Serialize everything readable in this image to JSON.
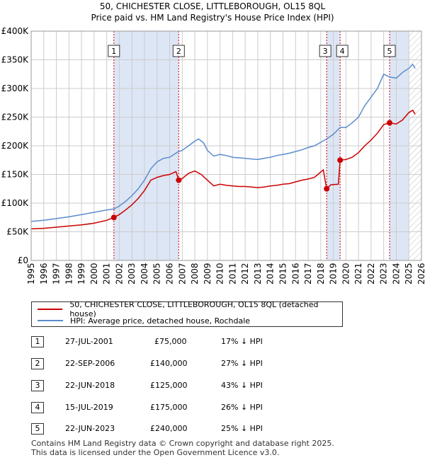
{
  "title_line1": "50, CHICHESTER CLOSE, LITTLEBOROUGH, OL15 8QL",
  "title_line2": "Price paid vs. HM Land Registry's House Price Index (HPI)",
  "colors": {
    "price_paid": "#cc0000",
    "hpi": "#5b8ccc",
    "shade": "#dde6f5",
    "grid": "#cccccc"
  },
  "chart_data": {
    "type": "line",
    "xlim": [
      1995,
      2026
    ],
    "ylim": [
      0,
      400000
    ],
    "y_ticks": [
      {
        "value": 0,
        "label": "£0"
      },
      {
        "value": 50000,
        "label": "£50K"
      },
      {
        "value": 100000,
        "label": "£100K"
      },
      {
        "value": 150000,
        "label": "£150K"
      },
      {
        "value": 200000,
        "label": "£200K"
      },
      {
        "value": 250000,
        "label": "£250K"
      },
      {
        "value": 300000,
        "label": "£300K"
      },
      {
        "value": 350000,
        "label": "£350K"
      },
      {
        "value": 400000,
        "label": "£400K"
      }
    ],
    "x_ticks": [
      "1995",
      "1996",
      "1997",
      "1998",
      "1999",
      "2000",
      "2001",
      "2002",
      "2003",
      "2004",
      "2005",
      "2006",
      "2007",
      "2008",
      "2009",
      "2010",
      "2011",
      "2012",
      "2013",
      "2014",
      "2015",
      "2016",
      "2017",
      "2018",
      "2019",
      "2020",
      "2021",
      "2022",
      "2023",
      "2024",
      "2025",
      "2026"
    ],
    "series": [
      {
        "name": "hpi",
        "points": [
          [
            1995.0,
            68000
          ],
          [
            1996.0,
            70000
          ],
          [
            1997.0,
            73000
          ],
          [
            1998.0,
            76000
          ],
          [
            1999.0,
            80000
          ],
          [
            2000.0,
            84000
          ],
          [
            2001.0,
            88000
          ],
          [
            2001.6,
            90000
          ],
          [
            2002.0,
            95000
          ],
          [
            2002.5,
            103000
          ],
          [
            2003.0,
            113000
          ],
          [
            2003.5,
            125000
          ],
          [
            2004.0,
            140000
          ],
          [
            2004.5,
            160000
          ],
          [
            2005.0,
            172000
          ],
          [
            2005.5,
            178000
          ],
          [
            2006.0,
            180000
          ],
          [
            2006.7,
            190000
          ],
          [
            2007.0,
            192000
          ],
          [
            2007.5,
            200000
          ],
          [
            2008.0,
            208000
          ],
          [
            2008.3,
            212000
          ],
          [
            2008.7,
            205000
          ],
          [
            2009.0,
            192000
          ],
          [
            2009.5,
            182000
          ],
          [
            2010.0,
            185000
          ],
          [
            2010.5,
            183000
          ],
          [
            2011.0,
            180000
          ],
          [
            2011.5,
            179000
          ],
          [
            2012.0,
            178000
          ],
          [
            2012.5,
            177000
          ],
          [
            2013.0,
            176000
          ],
          [
            2013.5,
            178000
          ],
          [
            2014.0,
            180000
          ],
          [
            2014.5,
            183000
          ],
          [
            2015.0,
            185000
          ],
          [
            2015.5,
            187000
          ],
          [
            2016.0,
            190000
          ],
          [
            2016.5,
            193000
          ],
          [
            2017.0,
            197000
          ],
          [
            2017.5,
            200000
          ],
          [
            2018.0,
            206000
          ],
          [
            2018.47,
            212000
          ],
          [
            2019.0,
            220000
          ],
          [
            2019.54,
            232000
          ],
          [
            2020.0,
            232000
          ],
          [
            2020.5,
            240000
          ],
          [
            2021.0,
            250000
          ],
          [
            2021.5,
            270000
          ],
          [
            2022.0,
            285000
          ],
          [
            2022.5,
            300000
          ],
          [
            2023.0,
            325000
          ],
          [
            2023.47,
            320000
          ],
          [
            2024.0,
            318000
          ],
          [
            2024.5,
            328000
          ],
          [
            2025.0,
            335000
          ],
          [
            2025.3,
            342000
          ],
          [
            2025.5,
            335000
          ]
        ]
      },
      {
        "name": "price_paid",
        "points": [
          [
            1995.0,
            55000
          ],
          [
            1996.0,
            56000
          ],
          [
            1997.0,
            58000
          ],
          [
            1998.0,
            60000
          ],
          [
            1999.0,
            62000
          ],
          [
            2000.0,
            65000
          ],
          [
            2001.0,
            70000
          ],
          [
            2001.57,
            75000
          ],
          [
            2002.0,
            80000
          ],
          [
            2002.5,
            88000
          ],
          [
            2003.0,
            97000
          ],
          [
            2003.5,
            108000
          ],
          [
            2004.0,
            122000
          ],
          [
            2004.5,
            140000
          ],
          [
            2005.0,
            145000
          ],
          [
            2005.5,
            148000
          ],
          [
            2006.0,
            150000
          ],
          [
            2006.5,
            155000
          ],
          [
            2006.72,
            140000
          ],
          [
            2007.0,
            143000
          ],
          [
            2007.5,
            152000
          ],
          [
            2008.0,
            156000
          ],
          [
            2008.5,
            150000
          ],
          [
            2009.0,
            140000
          ],
          [
            2009.5,
            130000
          ],
          [
            2010.0,
            133000
          ],
          [
            2010.5,
            131000
          ],
          [
            2011.0,
            130000
          ],
          [
            2011.5,
            129000
          ],
          [
            2012.0,
            129000
          ],
          [
            2012.5,
            128000
          ],
          [
            2013.0,
            127000
          ],
          [
            2013.5,
            128000
          ],
          [
            2014.0,
            130000
          ],
          [
            2014.5,
            131000
          ],
          [
            2015.0,
            133000
          ],
          [
            2015.5,
            134000
          ],
          [
            2016.0,
            137000
          ],
          [
            2016.5,
            140000
          ],
          [
            2017.0,
            142000
          ],
          [
            2017.5,
            145000
          ],
          [
            2018.2,
            158000
          ],
          [
            2018.47,
            125000
          ],
          [
            2018.8,
            132000
          ],
          [
            2019.4,
            133000
          ],
          [
            2019.54,
            175000
          ],
          [
            2020.0,
            176000
          ],
          [
            2020.5,
            180000
          ],
          [
            2021.0,
            188000
          ],
          [
            2021.5,
            200000
          ],
          [
            2022.0,
            210000
          ],
          [
            2022.5,
            222000
          ],
          [
            2023.0,
            237000
          ],
          [
            2023.47,
            240000
          ],
          [
            2024.0,
            238000
          ],
          [
            2024.5,
            245000
          ],
          [
            2025.0,
            258000
          ],
          [
            2025.3,
            262000
          ],
          [
            2025.5,
            255000
          ]
        ]
      }
    ],
    "transactions": [
      {
        "num": "1",
        "x": 2001.57,
        "price": 75000
      },
      {
        "num": "2",
        "x": 2006.72,
        "price": 140000
      },
      {
        "num": "3",
        "x": 2018.47,
        "price": 125000
      },
      {
        "num": "4",
        "x": 2019.54,
        "price": 175000
      },
      {
        "num": "5",
        "x": 2023.47,
        "price": 240000
      }
    ],
    "shaded_ranges": [
      [
        2001.57,
        2006.72
      ],
      [
        2018.47,
        2019.54
      ],
      [
        2023.47,
        2025.0
      ]
    ],
    "hatch_from": 2025.0
  },
  "legend": {
    "price_paid_label": "50, CHICHESTER CLOSE, LITTLEBOROUGH, OL15 8QL (detached house)",
    "hpi_label": "HPI: Average price, detached house, Rochdale"
  },
  "transactions_table": [
    {
      "num": "1",
      "date": "27-JUL-2001",
      "price": "£75,000",
      "hpi": "17% ↓ HPI"
    },
    {
      "num": "2",
      "date": "22-SEP-2006",
      "price": "£140,000",
      "hpi": "27% ↓ HPI"
    },
    {
      "num": "3",
      "date": "22-JUN-2018",
      "price": "£125,000",
      "hpi": "43% ↓ HPI"
    },
    {
      "num": "4",
      "date": "15-JUL-2019",
      "price": "£175,000",
      "hpi": "26% ↓ HPI"
    },
    {
      "num": "5",
      "date": "22-JUN-2023",
      "price": "£240,000",
      "hpi": "25% ↓ HPI"
    }
  ],
  "footer_line1": "Contains HM Land Registry data © Crown copyright and database right 2025.",
  "footer_line2": "This data is licensed under the Open Government Licence v3.0."
}
